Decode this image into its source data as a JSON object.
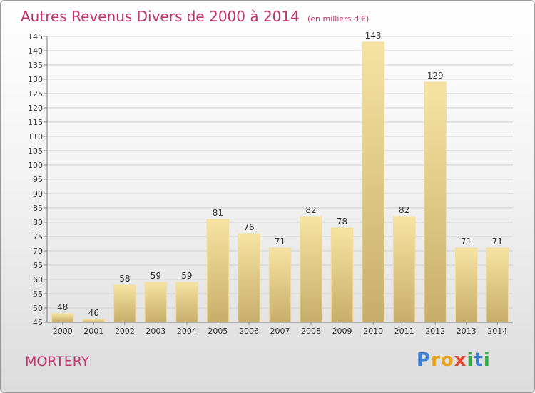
{
  "header": {
    "title": "Autres Revenus Divers de 2000 à 2014",
    "unit": "(en milliers d'€)"
  },
  "place": "MORTERY",
  "logo": {
    "letters": [
      {
        "ch": "P",
        "color": "#3a7fd5"
      },
      {
        "ch": "r",
        "color": "#e8a21a"
      },
      {
        "ch": "o",
        "color": "#e8a21a"
      },
      {
        "ch": "x",
        "color": "#e0452d"
      },
      {
        "ch": "i",
        "color": "#39a845"
      },
      {
        "ch": "t",
        "color": "#3a7fd5"
      },
      {
        "ch": "i",
        "color": "#39a845"
      }
    ]
  },
  "colors": {
    "accent": "#c0336a",
    "bar_light": "#f6e3a2",
    "bar_dark": "#c7ad6a",
    "grid": "#cfcfcf",
    "text": "#333333"
  },
  "chart_data": {
    "type": "bar",
    "title": "Autres Revenus Divers de 2000 à 2014",
    "subtitle": "(en milliers d'€)",
    "categories": [
      "2000",
      "2001",
      "2002",
      "2003",
      "2004",
      "2005",
      "2006",
      "2007",
      "2008",
      "2009",
      "2010",
      "2011",
      "2012",
      "2013",
      "2014"
    ],
    "values": [
      48,
      46,
      58,
      59,
      59,
      81,
      76,
      71,
      82,
      78,
      143,
      82,
      129,
      71,
      71
    ],
    "ylim": [
      45,
      145
    ],
    "ytick_step": 5,
    "grid": true,
    "data_labels": true,
    "xlabel": "",
    "ylabel": ""
  }
}
